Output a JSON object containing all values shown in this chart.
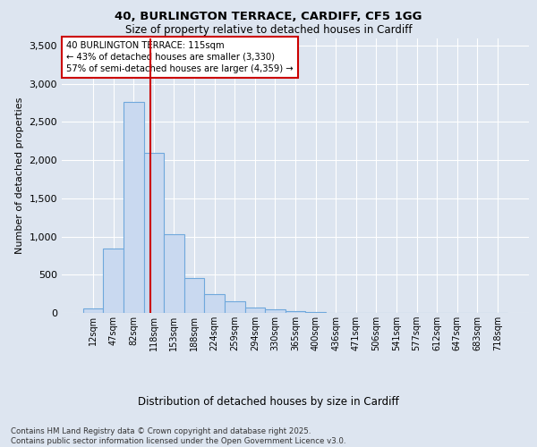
{
  "title_line1": "40, BURLINGTON TERRACE, CARDIFF, CF5 1GG",
  "title_line2": "Size of property relative to detached houses in Cardiff",
  "xlabel": "Distribution of detached houses by size in Cardiff",
  "ylabel": "Number of detached properties",
  "bar_color": "#c9d9f0",
  "bar_edge_color": "#6fa8dc",
  "categories": [
    "12sqm",
    "47sqm",
    "82sqm",
    "118sqm",
    "153sqm",
    "188sqm",
    "224sqm",
    "259sqm",
    "294sqm",
    "330sqm",
    "365sqm",
    "400sqm",
    "436sqm",
    "471sqm",
    "506sqm",
    "541sqm",
    "577sqm",
    "612sqm",
    "647sqm",
    "683sqm",
    "718sqm"
  ],
  "values": [
    55,
    840,
    2760,
    2100,
    1030,
    455,
    245,
    155,
    65,
    45,
    25,
    15,
    5,
    5,
    0,
    0,
    0,
    0,
    0,
    0,
    0
  ],
  "vline_x": 2.85,
  "vline_color": "#cc0000",
  "annotation_text": "40 BURLINGTON TERRACE: 115sqm\n← 43% of detached houses are smaller (3,330)\n57% of semi-detached houses are larger (4,359) →",
  "annotation_box_color": "#ffffff",
  "annotation_box_edge": "#cc0000",
  "ylim": [
    0,
    3600
  ],
  "yticks": [
    0,
    500,
    1000,
    1500,
    2000,
    2500,
    3000,
    3500
  ],
  "background_color": "#dde5f0",
  "footer_text": "Contains HM Land Registry data © Crown copyright and database right 2025.\nContains public sector information licensed under the Open Government Licence v3.0.",
  "grid_color": "#ffffff",
  "grid_alpha": 1.0
}
